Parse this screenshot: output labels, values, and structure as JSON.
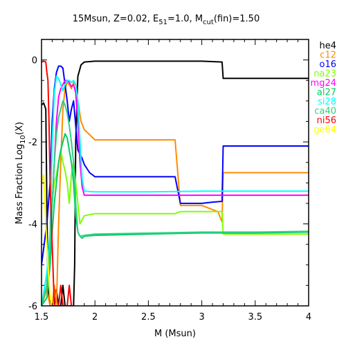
{
  "chart_data": {
    "type": "line",
    "title": {
      "base": "15Msun, Z=0.02, E",
      "sub1": "51",
      "mid": "=1.0, M",
      "sub2": "cut",
      "tail": "(fin)=1.50"
    },
    "xlabel": "M (Msun)",
    "ylabel": {
      "base": "Mass Fraction Log",
      "sub": "10",
      "tail": "(X)"
    },
    "xlim": [
      1.5,
      4.0
    ],
    "ylim": [
      -6,
      0.5
    ],
    "xticks": [
      "1.5",
      "2",
      "2.5",
      "3",
      "3.5",
      "4"
    ],
    "yticks": [
      "0",
      "-2",
      "-4",
      "-6"
    ],
    "legend_position": "right",
    "series": [
      {
        "name": "he4",
        "color": "#000000",
        "points": [
          [
            1.5,
            -1.1
          ],
          [
            1.52,
            -1.05
          ],
          [
            1.54,
            -1.2
          ],
          [
            1.55,
            -3.5
          ],
          [
            1.56,
            -5.5
          ],
          [
            1.58,
            -6
          ],
          [
            1.6,
            -6
          ],
          [
            1.62,
            -6
          ],
          [
            1.64,
            -5.6
          ],
          [
            1.66,
            -6
          ],
          [
            1.68,
            -6
          ],
          [
            1.7,
            -5.5
          ],
          [
            1.72,
            -6
          ],
          [
            1.74,
            -6
          ],
          [
            1.76,
            -6
          ],
          [
            1.78,
            -6
          ],
          [
            1.8,
            -6
          ],
          [
            1.81,
            -5
          ],
          [
            1.82,
            -2
          ],
          [
            1.84,
            -0.4
          ],
          [
            1.87,
            -0.12
          ],
          [
            1.9,
            -0.05
          ],
          [
            2.0,
            -0.03
          ],
          [
            2.5,
            -0.03
          ],
          [
            3.0,
            -0.03
          ],
          [
            3.19,
            -0.05
          ],
          [
            3.2,
            -0.45
          ],
          [
            4.0,
            -0.45
          ]
        ]
      },
      {
        "name": "c12",
        "color": "#ff8c00",
        "points": [
          [
            1.5,
            -6
          ],
          [
            1.55,
            -5.6
          ],
          [
            1.58,
            -6
          ],
          [
            1.6,
            -6
          ],
          [
            1.62,
            -5.5
          ],
          [
            1.64,
            -6
          ],
          [
            1.66,
            -4
          ],
          [
            1.68,
            -2.5
          ],
          [
            1.7,
            -1.2
          ],
          [
            1.72,
            -0.7
          ],
          [
            1.74,
            -0.55
          ],
          [
            1.76,
            -0.6
          ],
          [
            1.78,
            -0.7
          ],
          [
            1.8,
            -0.55
          ],
          [
            1.82,
            -0.6
          ],
          [
            1.84,
            -1.0
          ],
          [
            1.87,
            -1.5
          ],
          [
            1.9,
            -1.7
          ],
          [
            2.0,
            -1.95
          ],
          [
            2.1,
            -1.95
          ],
          [
            2.5,
            -1.95
          ],
          [
            2.75,
            -1.95
          ],
          [
            2.8,
            -3.55
          ],
          [
            3.0,
            -3.55
          ],
          [
            3.1,
            -3.65
          ],
          [
            3.15,
            -3.7
          ],
          [
            3.19,
            -3.95
          ],
          [
            3.2,
            -2.75
          ],
          [
            4.0,
            -2.75
          ]
        ]
      },
      {
        "name": "o16",
        "color": "#0000ff",
        "points": [
          [
            1.5,
            -5
          ],
          [
            1.55,
            -4
          ],
          [
            1.58,
            -3
          ],
          [
            1.6,
            -1.5
          ],
          [
            1.62,
            -0.7
          ],
          [
            1.64,
            -0.3
          ],
          [
            1.66,
            -0.15
          ],
          [
            1.68,
            -0.15
          ],
          [
            1.7,
            -0.2
          ],
          [
            1.72,
            -0.6
          ],
          [
            1.74,
            -1.0
          ],
          [
            1.76,
            -1.5
          ],
          [
            1.78,
            -1.2
          ],
          [
            1.8,
            -1.0
          ],
          [
            1.82,
            -1.6
          ],
          [
            1.84,
            -2.2
          ],
          [
            1.86,
            -2.3
          ],
          [
            1.88,
            -2.4
          ],
          [
            1.9,
            -2.55
          ],
          [
            1.95,
            -2.75
          ],
          [
            2.0,
            -2.85
          ],
          [
            2.5,
            -2.85
          ],
          [
            2.75,
            -2.85
          ],
          [
            2.8,
            -3.5
          ],
          [
            3.0,
            -3.5
          ],
          [
            3.1,
            -3.47
          ],
          [
            3.19,
            -3.45
          ],
          [
            3.2,
            -2.1
          ],
          [
            4.0,
            -2.1
          ]
        ]
      },
      {
        "name": "na23",
        "color": "#7fff00",
        "points": [
          [
            1.5,
            -6
          ],
          [
            1.55,
            -5.5
          ],
          [
            1.58,
            -4.5
          ],
          [
            1.6,
            -3.5
          ],
          [
            1.62,
            -3.0
          ],
          [
            1.64,
            -2.8
          ],
          [
            1.66,
            -2.5
          ],
          [
            1.68,
            -2.2
          ],
          [
            1.7,
            -2.5
          ],
          [
            1.72,
            -2.7
          ],
          [
            1.74,
            -3.0
          ],
          [
            1.76,
            -3.5
          ],
          [
            1.78,
            -2.8
          ],
          [
            1.8,
            -2.5
          ],
          [
            1.82,
            -3.0
          ],
          [
            1.84,
            -3.5
          ],
          [
            1.86,
            -4.0
          ],
          [
            1.88,
            -3.9
          ],
          [
            1.9,
            -3.8
          ],
          [
            2.0,
            -3.75
          ],
          [
            2.5,
            -3.75
          ],
          [
            2.75,
            -3.75
          ],
          [
            2.8,
            -3.7
          ],
          [
            3.0,
            -3.7
          ],
          [
            3.19,
            -3.7
          ],
          [
            3.2,
            -4.25
          ],
          [
            4.0,
            -4.25
          ]
        ]
      },
      {
        "name": "mg24",
        "color": "#ff00ff",
        "points": [
          [
            1.5,
            -6
          ],
          [
            1.55,
            -5.5
          ],
          [
            1.58,
            -4.5
          ],
          [
            1.6,
            -3.5
          ],
          [
            1.62,
            -2.5
          ],
          [
            1.64,
            -1.5
          ],
          [
            1.66,
            -0.9
          ],
          [
            1.68,
            -0.7
          ],
          [
            1.7,
            -0.6
          ],
          [
            1.72,
            -0.5
          ],
          [
            1.74,
            -0.5
          ],
          [
            1.76,
            -0.55
          ],
          [
            1.78,
            -0.65
          ],
          [
            1.8,
            -0.6
          ],
          [
            1.82,
            -0.8
          ],
          [
            1.84,
            -1.5
          ],
          [
            1.86,
            -2.5
          ],
          [
            1.88,
            -3.1
          ],
          [
            1.9,
            -3.3
          ],
          [
            2.0,
            -3.3
          ],
          [
            2.5,
            -3.3
          ],
          [
            3.0,
            -3.3
          ],
          [
            3.5,
            -3.3
          ],
          [
            4.0,
            -3.3
          ]
        ]
      },
      {
        "name": "al27",
        "color": "#00cc66",
        "points": [
          [
            1.5,
            -6
          ],
          [
            1.55,
            -5.8
          ],
          [
            1.58,
            -5
          ],
          [
            1.6,
            -4.2
          ],
          [
            1.62,
            -3.5
          ],
          [
            1.64,
            -3.0
          ],
          [
            1.66,
            -2.5
          ],
          [
            1.68,
            -2.2
          ],
          [
            1.7,
            -2.0
          ],
          [
            1.72,
            -1.8
          ],
          [
            1.74,
            -1.9
          ],
          [
            1.76,
            -2.2
          ],
          [
            1.78,
            -2.5
          ],
          [
            1.8,
            -3.0
          ],
          [
            1.82,
            -3.8
          ],
          [
            1.84,
            -4.2
          ],
          [
            1.86,
            -4.3
          ],
          [
            1.88,
            -4.35
          ],
          [
            1.9,
            -4.3
          ],
          [
            2.0,
            -4.28
          ],
          [
            2.5,
            -4.25
          ],
          [
            3.0,
            -4.22
          ],
          [
            3.5,
            -4.22
          ],
          [
            4.0,
            -4.2
          ]
        ]
      },
      {
        "name": "si28",
        "color": "#00ffff",
        "points": [
          [
            1.5,
            -6
          ],
          [
            1.55,
            -5.2
          ],
          [
            1.58,
            -4.2
          ],
          [
            1.6,
            -2.0
          ],
          [
            1.62,
            -0.8
          ],
          [
            1.64,
            -0.4
          ],
          [
            1.66,
            -0.45
          ],
          [
            1.68,
            -0.6
          ],
          [
            1.7,
            -0.75
          ],
          [
            1.72,
            -0.6
          ],
          [
            1.74,
            -0.5
          ],
          [
            1.76,
            -0.5
          ],
          [
            1.78,
            -0.55
          ],
          [
            1.8,
            -0.5
          ],
          [
            1.82,
            -0.6
          ],
          [
            1.84,
            -1.0
          ],
          [
            1.86,
            -2.0
          ],
          [
            1.88,
            -2.9
          ],
          [
            1.9,
            -3.2
          ],
          [
            2.0,
            -3.22
          ],
          [
            2.5,
            -3.22
          ],
          [
            3.0,
            -3.2
          ],
          [
            3.5,
            -3.2
          ],
          [
            4.0,
            -3.2
          ]
        ]
      },
      {
        "name": "ca40",
        "color": "#30d080",
        "points": [
          [
            1.5,
            -6
          ],
          [
            1.55,
            -5.5
          ],
          [
            1.58,
            -4.5
          ],
          [
            1.6,
            -3.5
          ],
          [
            1.62,
            -2.5
          ],
          [
            1.64,
            -1.8
          ],
          [
            1.66,
            -1.4
          ],
          [
            1.68,
            -1.2
          ],
          [
            1.7,
            -1.0
          ],
          [
            1.72,
            -1.1
          ],
          [
            1.74,
            -1.3
          ],
          [
            1.76,
            -1.6
          ],
          [
            1.78,
            -2.0
          ],
          [
            1.8,
            -2.5
          ],
          [
            1.82,
            -3.5
          ],
          [
            1.84,
            -4.2
          ],
          [
            1.86,
            -4.3
          ],
          [
            1.9,
            -4.28
          ],
          [
            2.0,
            -4.25
          ],
          [
            3.0,
            -4.2
          ],
          [
            3.5,
            -4.2
          ],
          [
            4.0,
            -4.18
          ]
        ]
      },
      {
        "name": "ni56",
        "color": "#ff0000",
        "points": [
          [
            1.5,
            -0.05
          ],
          [
            1.52,
            -0.03
          ],
          [
            1.54,
            -0.05
          ],
          [
            1.55,
            -0.3
          ],
          [
            1.56,
            -0.5
          ],
          [
            1.57,
            -1.5
          ],
          [
            1.58,
            -3.0
          ],
          [
            1.6,
            -4.5
          ],
          [
            1.62,
            -6
          ],
          [
            1.64,
            -6
          ],
          [
            1.66,
            -6
          ],
          [
            1.68,
            -5.5
          ],
          [
            1.7,
            -6
          ],
          [
            1.72,
            -6
          ],
          [
            1.74,
            -6
          ],
          [
            1.76,
            -5.5
          ],
          [
            1.78,
            -6
          ],
          [
            1.8,
            -6
          ]
        ]
      },
      {
        "name": "ge64",
        "color": "#ffff00",
        "points": [
          [
            1.5,
            -3.0
          ],
          [
            1.52,
            -2.8
          ],
          [
            1.54,
            -4.0
          ],
          [
            1.56,
            -5.0
          ],
          [
            1.58,
            -5.8
          ],
          [
            1.6,
            -6
          ]
        ]
      }
    ]
  }
}
